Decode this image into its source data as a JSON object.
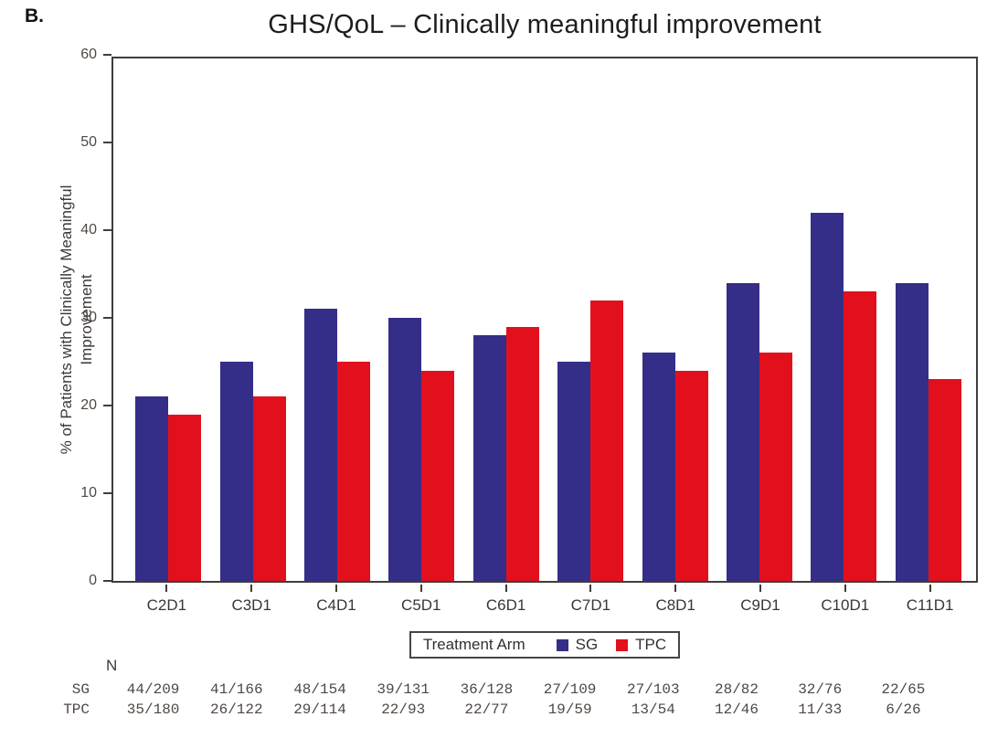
{
  "panel_label": "B.",
  "chart_data": {
    "type": "bar",
    "title": "GHS/QoL – Clinically meaningful improvement",
    "categories": [
      "C2D1",
      "C3D1",
      "C4D1",
      "C5D1",
      "C6D1",
      "C7D1",
      "C8D1",
      "C9D1",
      "C10D1",
      "C11D1"
    ],
    "series": [
      {
        "name": "SG",
        "color": "#342e88",
        "values": [
          21,
          25,
          31,
          30,
          28,
          25,
          26,
          34,
          42,
          34
        ]
      },
      {
        "name": "TPC",
        "color": "#e2101d",
        "values": [
          19,
          21,
          25,
          24,
          29,
          32,
          24,
          26,
          33,
          23
        ]
      }
    ],
    "xlabel": "",
    "ylabel": "% of Patients with Clinically Meaningful Improvement",
    "ylim": [
      0,
      60
    ],
    "yticks": [
      0,
      10,
      20,
      30,
      40,
      50,
      60
    ],
    "grid": false,
    "legend_title": "Treatment Arm",
    "legend_position": "bottom"
  },
  "n_table": {
    "header": "N",
    "rows": [
      {
        "label": "SG",
        "values": [
          "44/209",
          "41/166",
          "48/154",
          "39/131",
          "36/128",
          "27/109",
          "27/103",
          "28/82",
          "32/76",
          "22/65"
        ]
      },
      {
        "label": "TPC",
        "values": [
          "35/180",
          "26/122",
          "29/114",
          "22/93",
          "22/77",
          "19/59",
          "13/54",
          "12/46",
          "11/33",
          "6/26"
        ]
      }
    ]
  }
}
